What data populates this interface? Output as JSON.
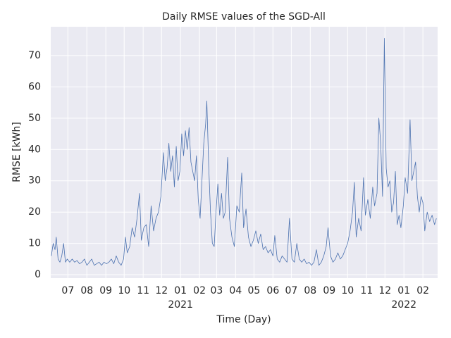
{
  "chart_data": {
    "type": "line",
    "title": "Daily RMSE values of the SGD-All",
    "xlabel": "Time (Day)",
    "ylabel": "RMSE [kWh]",
    "x": [
      "2020-06-04",
      "2020-06-07",
      "2020-06-10",
      "2020-06-12",
      "2020-06-15",
      "2020-06-18",
      "2020-06-21",
      "2020-06-24",
      "2020-06-27",
      "2020-06-30",
      "2020-07-04",
      "2020-07-08",
      "2020-07-12",
      "2020-07-16",
      "2020-07-20",
      "2020-07-24",
      "2020-07-28",
      "2020-08-01",
      "2020-08-05",
      "2020-08-09",
      "2020-08-13",
      "2020-08-17",
      "2020-08-21",
      "2020-08-25",
      "2020-08-29",
      "2020-09-02",
      "2020-09-06",
      "2020-09-10",
      "2020-09-14",
      "2020-09-18",
      "2020-09-22",
      "2020-09-26",
      "2020-09-30",
      "2020-10-03",
      "2020-10-06",
      "2020-10-10",
      "2020-10-14",
      "2020-10-18",
      "2020-10-22",
      "2020-10-26",
      "2020-10-29",
      "2020-11-02",
      "2020-11-06",
      "2020-11-10",
      "2020-11-14",
      "2020-11-18",
      "2020-11-22",
      "2020-11-26",
      "2020-11-30",
      "2020-12-04",
      "2020-12-07",
      "2020-12-10",
      "2020-12-13",
      "2020-12-16",
      "2020-12-19",
      "2020-12-22",
      "2020-12-25",
      "2020-12-28",
      "2020-12-31",
      "2021-01-03",
      "2021-01-06",
      "2021-01-09",
      "2021-01-12",
      "2021-01-15",
      "2021-01-18",
      "2021-01-21",
      "2021-01-24",
      "2021-01-27",
      "2021-01-30",
      "2021-02-02",
      "2021-02-05",
      "2021-02-08",
      "2021-02-11",
      "2021-02-13",
      "2021-02-16",
      "2021-02-19",
      "2021-02-22",
      "2021-02-25",
      "2021-02-28",
      "2021-03-03",
      "2021-03-06",
      "2021-03-09",
      "2021-03-12",
      "2021-03-15",
      "2021-03-19",
      "2021-03-22",
      "2021-03-26",
      "2021-03-30",
      "2021-04-03",
      "2021-04-07",
      "2021-04-11",
      "2021-04-14",
      "2021-04-18",
      "2021-04-22",
      "2021-04-26",
      "2021-04-30",
      "2021-05-04",
      "2021-05-08",
      "2021-05-12",
      "2021-05-16",
      "2021-05-20",
      "2021-05-24",
      "2021-05-28",
      "2021-06-01",
      "2021-06-04",
      "2021-06-08",
      "2021-06-12",
      "2021-06-16",
      "2021-06-20",
      "2021-06-24",
      "2021-06-28",
      "2021-07-02",
      "2021-07-06",
      "2021-07-10",
      "2021-07-14",
      "2021-07-18",
      "2021-07-22",
      "2021-07-26",
      "2021-07-30",
      "2021-08-03",
      "2021-08-07",
      "2021-08-11",
      "2021-08-15",
      "2021-08-19",
      "2021-08-23",
      "2021-08-27",
      "2021-08-30",
      "2021-09-03",
      "2021-09-07",
      "2021-09-11",
      "2021-09-15",
      "2021-09-19",
      "2021-09-23",
      "2021-09-27",
      "2021-10-01",
      "2021-10-05",
      "2021-10-09",
      "2021-10-12",
      "2021-10-15",
      "2021-10-19",
      "2021-10-23",
      "2021-10-27",
      "2021-10-30",
      "2021-11-03",
      "2021-11-07",
      "2021-11-11",
      "2021-11-14",
      "2021-11-18",
      "2021-11-21",
      "2021-11-24",
      "2021-11-27",
      "2021-11-30",
      "2021-12-03",
      "2021-12-06",
      "2021-12-09",
      "2021-12-12",
      "2021-12-15",
      "2021-12-18",
      "2021-12-21",
      "2021-12-24",
      "2021-12-27",
      "2021-12-31",
      "2022-01-03",
      "2022-01-07",
      "2022-01-11",
      "2022-01-14",
      "2022-01-17",
      "2022-01-20",
      "2022-01-23",
      "2022-01-26",
      "2022-01-29",
      "2022-02-01",
      "2022-02-04",
      "2022-02-08",
      "2022-02-12",
      "2022-02-16",
      "2022-02-20",
      "2022-02-23"
    ],
    "series": [
      {
        "name": "RMSE",
        "color": "#4c72b0",
        "values": [
          6,
          10,
          8,
          12,
          5,
          4,
          6,
          10,
          4,
          5,
          4,
          5,
          4,
          4.5,
          3.5,
          4,
          5,
          3,
          4,
          5,
          3,
          3.5,
          4,
          3,
          4,
          3.5,
          4,
          5,
          3.5,
          6,
          4,
          3,
          5,
          12,
          7,
          9,
          15,
          12,
          18,
          26,
          11,
          15,
          16,
          9,
          22,
          14,
          18,
          20,
          25,
          39,
          30,
          34,
          42,
          33,
          38,
          28,
          41,
          30,
          33,
          45,
          38,
          46,
          40,
          47,
          36,
          33,
          30,
          38,
          24,
          18,
          30,
          42,
          48,
          55.5,
          35,
          20,
          10,
          9,
          20,
          29,
          19,
          26,
          18,
          20,
          37.5,
          18,
          12,
          9,
          22,
          20,
          32.5,
          15,
          21,
          12,
          9,
          11,
          14,
          10,
          13,
          8,
          9,
          7,
          8,
          6,
          12.5,
          5,
          4,
          6,
          5,
          4,
          18,
          5,
          4,
          10,
          5,
          4,
          5,
          3.5,
          4,
          3,
          4,
          8,
          3,
          4,
          6,
          9,
          15,
          6,
          4,
          5,
          7,
          5,
          6,
          8,
          10,
          14,
          20,
          29.5,
          12,
          18,
          14,
          31,
          19,
          24,
          18,
          28,
          22,
          26,
          50,
          42,
          25,
          75.5,
          34,
          28,
          30,
          20,
          23,
          33,
          16,
          19,
          15,
          22,
          31,
          26,
          49.5,
          30,
          33,
          36,
          25,
          20,
          25,
          23,
          14,
          20,
          17,
          19,
          16,
          18
        ]
      }
    ],
    "xlim": [
      "2020-06-03",
      "2022-02-25"
    ],
    "xticks": [
      {
        "value": "2020-07",
        "label": "07"
      },
      {
        "value": "2020-08",
        "label": "08"
      },
      {
        "value": "2020-09",
        "label": "09"
      },
      {
        "value": "2020-10",
        "label": "10"
      },
      {
        "value": "2020-11",
        "label": "11"
      },
      {
        "value": "2020-12",
        "label": "12"
      },
      {
        "value": "2021-01",
        "label": "01"
      },
      {
        "value": "2021-02",
        "label": "02"
      },
      {
        "value": "2021-03",
        "label": "03"
      },
      {
        "value": "2021-04",
        "label": "04"
      },
      {
        "value": "2021-05",
        "label": "05"
      },
      {
        "value": "2021-06",
        "label": "06"
      },
      {
        "value": "2021-07",
        "label": "07"
      },
      {
        "value": "2021-08",
        "label": "08"
      },
      {
        "value": "2021-09",
        "label": "09"
      },
      {
        "value": "2021-10",
        "label": "10"
      },
      {
        "value": "2021-11",
        "label": "11"
      },
      {
        "value": "2021-12",
        "label": "12"
      },
      {
        "value": "2022-01",
        "label": "01"
      },
      {
        "value": "2022-02",
        "label": "02"
      }
    ],
    "year_labels": [
      {
        "value": "2021-01",
        "label": "2021"
      },
      {
        "value": "2022-01",
        "label": "2022"
      }
    ],
    "ylim": [
      -1.1,
      79.2
    ],
    "yticks": [
      0,
      10,
      20,
      30,
      40,
      50,
      60,
      70
    ],
    "grid": true
  }
}
